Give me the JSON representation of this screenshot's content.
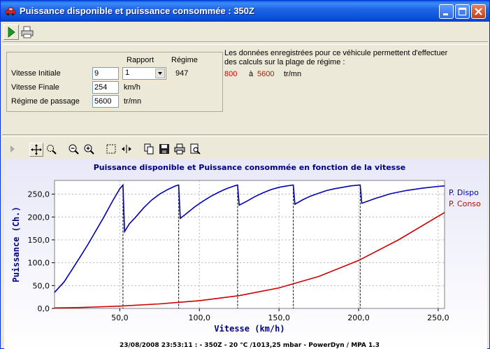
{
  "window": {
    "title": "Puissance disponible et puissance consommée : 350Z"
  },
  "form": {
    "header_rapport": "Rapport",
    "header_regime": "Régime",
    "vitesse_initiale_label": "Vitesse Initiale",
    "vitesse_initiale_value": "9",
    "rapport_value": "1",
    "regime_value": "947",
    "vitesse_finale_label": "Vitesse Finale",
    "vitesse_finale_value": "254",
    "vitesse_unit": "km/h",
    "regime_passage_label": "Régime de passage",
    "regime_passage_value": "5600",
    "regime_unit": "tr/mn"
  },
  "info": {
    "line1": "Les données enregistrées pour ce véhicule permettent d'effectuer",
    "line2": "des calculs sur la plage de régime  :",
    "range_min": "800",
    "range_sep": "à",
    "range_max": "5600",
    "range_unit": "tr/mn"
  },
  "colors": {
    "dispo": "#0000b0",
    "conso": "#cc0000"
  },
  "chart_data": {
    "type": "line",
    "title": "Puissance disponible et Puissance consommée en fonction de la vitesse",
    "xlabel": "Vitesse (km/h)",
    "ylabel": "Puissance (Ch.)",
    "footer": "23/08/2008 23:53:11 :  - 350Z - 20 °C /1013,25 mbar - PowerDyn / MPA 1.3",
    "xlim": [
      9,
      254
    ],
    "ylim": [
      0,
      280
    ],
    "x_ticks": [
      50,
      100,
      150,
      200,
      250
    ],
    "x_tick_labels": [
      "50,0",
      "100,0",
      "150,0",
      "200,0",
      "250,0"
    ],
    "y_ticks": [
      0,
      50,
      100,
      150,
      200,
      250
    ],
    "y_tick_labels": [
      "0,0",
      "50,0",
      "100,0",
      "150,0",
      "200,0",
      "250,0"
    ],
    "grid": true,
    "legend_position": "right",
    "shift_speeds": [
      52,
      87,
      124,
      159,
      201
    ],
    "series": [
      {
        "name": "P. Dispo",
        "color": "#0000b0",
        "points": [
          [
            9,
            35
          ],
          [
            15,
            58
          ],
          [
            20,
            85
          ],
          [
            25,
            112
          ],
          [
            30,
            140
          ],
          [
            35,
            170
          ],
          [
            40,
            200
          ],
          [
            45,
            232
          ],
          [
            48,
            250
          ],
          [
            50,
            262
          ],
          [
            52,
            270
          ],
          [
            53,
            168
          ],
          [
            56,
            185
          ],
          [
            60,
            200
          ],
          [
            65,
            220
          ],
          [
            70,
            237
          ],
          [
            75,
            250
          ],
          [
            80,
            260
          ],
          [
            85,
            268
          ],
          [
            87,
            270
          ],
          [
            88,
            197
          ],
          [
            92,
            208
          ],
          [
            97,
            222
          ],
          [
            102,
            234
          ],
          [
            107,
            245
          ],
          [
            112,
            254
          ],
          [
            117,
            262
          ],
          [
            122,
            268
          ],
          [
            124,
            270
          ],
          [
            125,
            226
          ],
          [
            130,
            235
          ],
          [
            135,
            245
          ],
          [
            140,
            253
          ],
          [
            145,
            260
          ],
          [
            150,
            265
          ],
          [
            155,
            268
          ],
          [
            159,
            270
          ],
          [
            160,
            228
          ],
          [
            165,
            238
          ],
          [
            170,
            246
          ],
          [
            175,
            252
          ],
          [
            180,
            258
          ],
          [
            185,
            262
          ],
          [
            190,
            265
          ],
          [
            195,
            268
          ],
          [
            201,
            270
          ],
          [
            202,
            230
          ],
          [
            210,
            240
          ],
          [
            220,
            251
          ],
          [
            230,
            258
          ],
          [
            240,
            263
          ],
          [
            250,
            267
          ],
          [
            254,
            268
          ]
        ]
      },
      {
        "name": "P. Conso",
        "color": "#cc0000",
        "points": [
          [
            9,
            1
          ],
          [
            25,
            2
          ],
          [
            50,
            5
          ],
          [
            75,
            10
          ],
          [
            100,
            17
          ],
          [
            125,
            28
          ],
          [
            150,
            45
          ],
          [
            175,
            70
          ],
          [
            200,
            105
          ],
          [
            225,
            150
          ],
          [
            254,
            210
          ]
        ]
      }
    ]
  }
}
